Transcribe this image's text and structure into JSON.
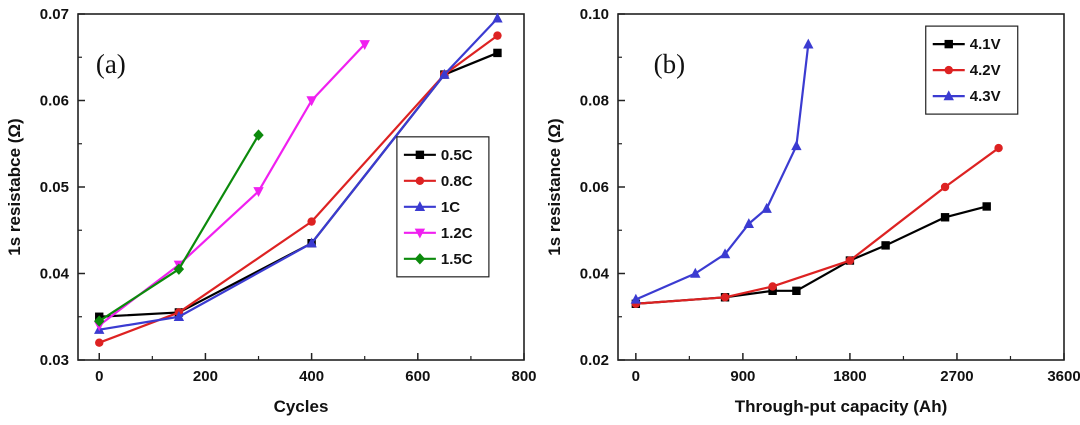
{
  "figure": {
    "background": "#ffffff",
    "frame_color": "#222222"
  },
  "chart_data": [
    {
      "id": "a",
      "type": "line",
      "panel_label": "(a)",
      "panel_label_pos": [
        0.04,
        0.17
      ],
      "xlabel": "Cycles",
      "ylabel": "1s resistabce (Ω)",
      "xlim": [
        -40,
        800
      ],
      "ylim": [
        0.03,
        0.07
      ],
      "xticks": {
        "values": [
          0,
          200,
          400,
          600,
          800
        ],
        "labels": [
          "0",
          "200",
          "400",
          "600",
          "800"
        ]
      },
      "yticks": {
        "values": [
          0.03,
          0.04,
          0.05,
          0.06,
          0.07
        ],
        "labels": [
          "0.03",
          "0.04",
          "0.05",
          "0.06",
          "0.07"
        ]
      },
      "grid": false,
      "legend": {
        "x": 0.715,
        "y": 0.355
      },
      "series": [
        {
          "name": "0.5C",
          "color": "#000000",
          "marker": "square",
          "x": [
            0,
            150,
            400,
            650,
            750
          ],
          "y": [
            0.035,
            0.0355,
            0.0435,
            0.063,
            0.0655
          ]
        },
        {
          "name": "0.8C",
          "color": "#dd2222",
          "marker": "circle",
          "x": [
            0,
            150,
            400,
            650,
            750
          ],
          "y": [
            0.032,
            0.0355,
            0.046,
            0.063,
            0.0675
          ]
        },
        {
          "name": "1C",
          "color": "#3b3bd1",
          "marker": "triangle-up",
          "x": [
            0,
            150,
            400,
            650,
            750
          ],
          "y": [
            0.0335,
            0.035,
            0.0435,
            0.063,
            0.0695
          ]
        },
        {
          "name": "1.2C",
          "color": "#f020f0",
          "marker": "triangle-down",
          "x": [
            0,
            150,
            300,
            400,
            500
          ],
          "y": [
            0.034,
            0.041,
            0.0495,
            0.06,
            0.0665
          ]
        },
        {
          "name": "1.5C",
          "color": "#0c8a0c",
          "marker": "diamond",
          "x": [
            0,
            150,
            300
          ],
          "y": [
            0.0345,
            0.0405,
            0.056
          ]
        }
      ]
    },
    {
      "id": "b",
      "type": "line",
      "panel_label": "(b)",
      "panel_label_pos": [
        0.08,
        0.17
      ],
      "xlabel": "Through-put capacity (Ah)",
      "ylabel": "1s resistance (Ω)",
      "xlim": [
        -150,
        3600
      ],
      "ylim": [
        0.02,
        0.1
      ],
      "xticks": {
        "values": [
          0,
          900,
          1800,
          2700,
          3600
        ],
        "labels": [
          "0",
          "900",
          "1800",
          "2700",
          "3600"
        ]
      },
      "yticks": {
        "values": [
          0.02,
          0.04,
          0.06,
          0.08,
          0.1
        ],
        "labels": [
          "0.02",
          "0.04",
          "0.06",
          "0.08",
          "0.10"
        ]
      },
      "grid": false,
      "legend": {
        "x": 0.69,
        "y": 0.035
      },
      "series": [
        {
          "name": "4.1V",
          "color": "#000000",
          "marker": "square",
          "x": [
            0,
            750,
            1150,
            1350,
            1800,
            2100,
            2600,
            2950
          ],
          "y": [
            0.033,
            0.0345,
            0.036,
            0.036,
            0.043,
            0.0465,
            0.053,
            0.0555
          ]
        },
        {
          "name": "4.2V",
          "color": "#dd2222",
          "marker": "circle",
          "x": [
            0,
            750,
            1150,
            1800,
            2600,
            3050
          ],
          "y": [
            0.033,
            0.0345,
            0.037,
            0.043,
            0.06,
            0.069
          ]
        },
        {
          "name": "4.3V",
          "color": "#3b3bd1",
          "marker": "triangle-up",
          "x": [
            0,
            500,
            750,
            950,
            1100,
            1350,
            1450
          ],
          "y": [
            0.034,
            0.04,
            0.0445,
            0.0515,
            0.055,
            0.0695,
            0.093
          ]
        }
      ]
    }
  ]
}
